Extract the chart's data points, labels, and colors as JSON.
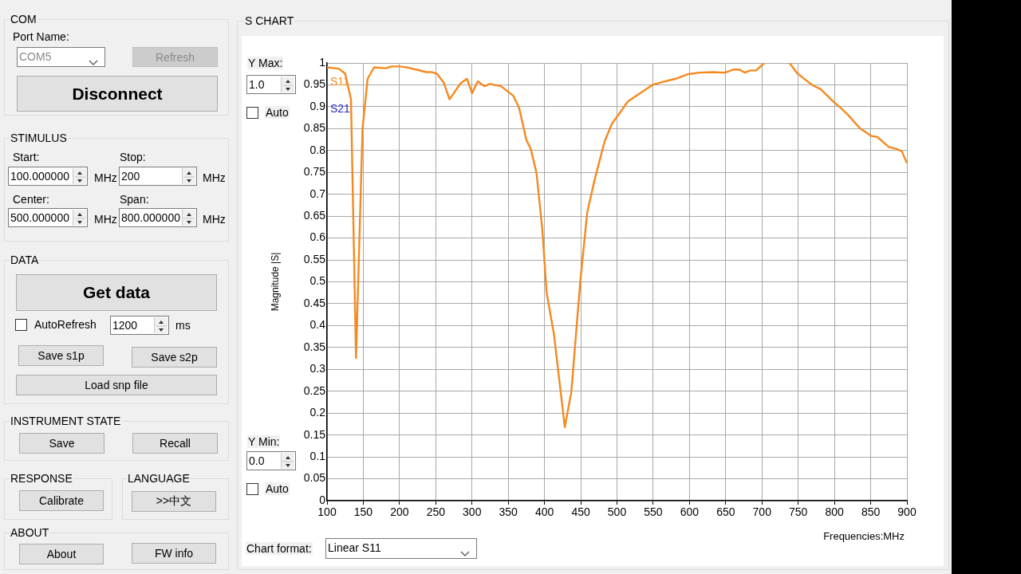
{
  "chart_data": {
    "type": "line",
    "title": "S CHART",
    "xlabel": "Frequencies:MHz",
    "ylabel": "Magnitude |S|",
    "xlim": [
      100,
      900
    ],
    "xticks": [
      100,
      150,
      200,
      250,
      300,
      350,
      400,
      450,
      500,
      550,
      600,
      650,
      700,
      750,
      800,
      850,
      900
    ],
    "ylim": [
      0,
      1
    ],
    "yticks": [
      0,
      0.05,
      0.1,
      0.15,
      0.2,
      0.25,
      0.3,
      0.35,
      0.4,
      0.45,
      0.5,
      0.55,
      0.6,
      0.65,
      0.7,
      0.75,
      0.8,
      0.85,
      0.9,
      0.95,
      1
    ],
    "grid": true,
    "legend": "top left",
    "marker": "none",
    "line_style": "solid",
    "series": [
      {
        "name": "S11",
        "color": "#f5891f",
        "x": [
          100,
          116,
          125,
          133,
          140,
          149,
          156,
          165,
          181,
          189,
          201,
          213,
          225,
          237,
          245,
          252,
          261,
          269,
          284,
          293,
          300,
          308,
          317,
          325,
          340,
          357,
          365,
          375,
          381,
          389,
          397,
          403,
          413,
          428,
          437,
          449,
          459,
          469,
          483,
          493,
          503,
          515,
          531,
          549,
          571,
          581,
          597,
          613,
          633,
          649,
          661,
          669,
          676,
          684,
          692,
          703,
          720,
          738,
          749,
          769,
          781,
          797,
          809,
          819,
          835,
          851,
          859,
          875,
          885,
          893,
          900
        ],
        "values": [
          0.99,
          0.987,
          0.976,
          0.917,
          0.326,
          0.851,
          0.964,
          0.99,
          0.988,
          0.992,
          0.992,
          0.989,
          0.984,
          0.979,
          0.979,
          0.975,
          0.955,
          0.917,
          0.953,
          0.964,
          0.931,
          0.958,
          0.947,
          0.952,
          0.947,
          0.925,
          0.897,
          0.824,
          0.804,
          0.748,
          0.619,
          0.474,
          0.381,
          0.168,
          0.248,
          0.494,
          0.659,
          0.732,
          0.821,
          0.861,
          0.884,
          0.912,
          0.93,
          0.95,
          0.96,
          0.964,
          0.974,
          0.978,
          0.979,
          0.978,
          0.985,
          0.985,
          0.978,
          0.983,
          0.983,
          1,
          null,
          1,
          0.976,
          0.95,
          0.94,
          0.914,
          0.897,
          0.881,
          0.851,
          0.833,
          0.831,
          0.808,
          0.804,
          0.798,
          0.771
        ]
      },
      {
        "name": "S21",
        "color": "#2424c8"
      }
    ],
    "annotations": [
      "COM",
      "Port Name:",
      "COM5",
      "Refresh",
      "Disconnect",
      "STIMULUS",
      "Start:",
      "Stop:",
      "100.000000",
      "MHz",
      "200",
      "MHz",
      "Center:",
      "Span:",
      "500.000000",
      "MHz",
      "800.000000",
      "MHz",
      "DATA",
      "Get data",
      "AutoRefresh",
      "1200",
      "ms",
      "Save s1p",
      "Save s2p",
      "Load snp file",
      "INSTRUMENT STATE",
      "Save",
      "Recall",
      "RESPONSE",
      "LANGUAGE",
      "Calibrate",
      ">>中文",
      "ABOUT",
      "About",
      "FW info",
      "Y Max:",
      "1.0",
      "Auto",
      "Y Min:",
      "0.0",
      "Auto",
      "Chart format:",
      "Linear S11"
    ]
  }
}
